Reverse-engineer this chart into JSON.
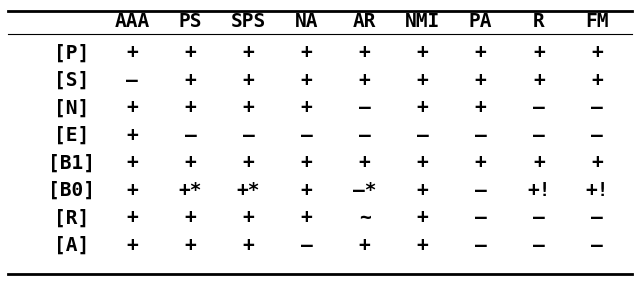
{
  "col_headers": [
    "AAA",
    "PS",
    "SPS",
    "NA",
    "AR",
    "NMI",
    "PA",
    "R",
    "FM"
  ],
  "row_headers": [
    "[P]",
    "[S]",
    "[N]",
    "[E]",
    "[B1]",
    "[B0]",
    "[R]",
    "[A]"
  ],
  "cells": [
    [
      "+",
      "+",
      "+",
      "+",
      "+",
      "+",
      "+",
      "+",
      "+"
    ],
    [
      "–",
      "+",
      "+",
      "+",
      "+",
      "+",
      "+",
      "+",
      "+"
    ],
    [
      "+",
      "+",
      "+",
      "+",
      "–",
      "+",
      "+",
      "–",
      "–"
    ],
    [
      "+",
      "–",
      "–",
      "–",
      "–",
      "–",
      "–",
      "–",
      "–"
    ],
    [
      "+",
      "+",
      "+",
      "+",
      "+",
      "+",
      "+",
      "+",
      "+"
    ],
    [
      "+",
      "+*",
      "+*",
      "+",
      "–*",
      "+",
      "–",
      "+!",
      "+!"
    ],
    [
      "+",
      "+",
      "+",
      "+",
      "~",
      "+",
      "–",
      "–",
      "–"
    ],
    [
      "+",
      "+",
      "+",
      "–",
      "+",
      "+",
      "–",
      "–",
      "–"
    ]
  ],
  "background_color": "#ffffff",
  "header_line_color": "#000000",
  "bottom_line_color": "#000000",
  "text_color": "#000000",
  "header_fontsize": 14,
  "cell_fontsize": 14,
  "row_header_fontsize": 14,
  "figsize": [
    6.4,
    2.87
  ],
  "dpi": 100
}
